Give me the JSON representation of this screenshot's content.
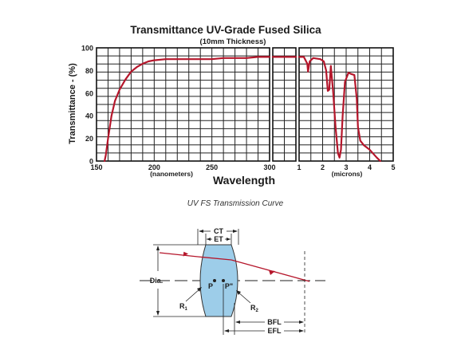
{
  "chart_data": {
    "type": "line",
    "title": "Transmittance UV-Grade Fused Silica",
    "subtitle": "(10mm Thickness)",
    "ylabel": "Transmittance - (%)",
    "xlabel": "Wavelength",
    "ylim": [
      0,
      100
    ],
    "y_ticks": [
      "0",
      "20",
      "40",
      "60",
      "80",
      "100"
    ],
    "grid": true,
    "line_color": "#b5162b",
    "panels": [
      {
        "name": "uv",
        "unit_label": "(nanometers)",
        "xlim": [
          150,
          300
        ],
        "x_ticks": [
          "150",
          "200",
          "250",
          "300"
        ],
        "x": [
          157,
          158,
          160,
          163,
          166,
          170,
          175,
          180,
          185,
          190,
          195,
          200,
          210,
          220,
          230,
          240,
          250,
          260,
          270,
          280,
          290,
          300
        ],
        "y": [
          0,
          5,
          20,
          40,
          53,
          63,
          72,
          79,
          83,
          86,
          88,
          89,
          90,
          90,
          90,
          90,
          90,
          91,
          91,
          91,
          92,
          92
        ]
      },
      {
        "name": "visible",
        "xlim": [
          300,
          1000
        ],
        "x_ticks": [],
        "x": [
          300,
          1000
        ],
        "y": [
          92,
          92
        ]
      },
      {
        "name": "ir",
        "unit_label": "(microns)",
        "xlim": [
          1,
          5
        ],
        "x_ticks": [
          "1",
          "2",
          "3",
          "4",
          "5"
        ],
        "x": [
          1.0,
          1.2,
          1.35,
          1.38,
          1.45,
          1.6,
          1.9,
          2.05,
          2.15,
          2.22,
          2.28,
          2.35,
          2.45,
          2.55,
          2.65,
          2.72,
          2.78,
          2.85,
          2.95,
          3.1,
          3.2,
          3.35,
          3.45,
          3.5,
          3.6,
          3.75,
          4.0,
          4.3,
          4.45
        ],
        "y": [
          92,
          92,
          86,
          79,
          88,
          91,
          90,
          88,
          80,
          62,
          63,
          84,
          60,
          30,
          7,
          3,
          10,
          40,
          70,
          78,
          77,
          76,
          55,
          30,
          18,
          14,
          10,
          3,
          0
        ]
      }
    ]
  },
  "caption": "UV FS Transmission Curve",
  "diagram": {
    "labels": {
      "ct": "CT",
      "et": "ET",
      "dia": "Dia.",
      "p": "P",
      "p_prime": "P\"",
      "r1": "R",
      "r1_sub": "1",
      "r2": "R",
      "r2_sub": "2",
      "bfl": "BFL",
      "efl": "EFL"
    },
    "lens_fill": "#9dcde9",
    "ray_color": "#b5162b"
  }
}
